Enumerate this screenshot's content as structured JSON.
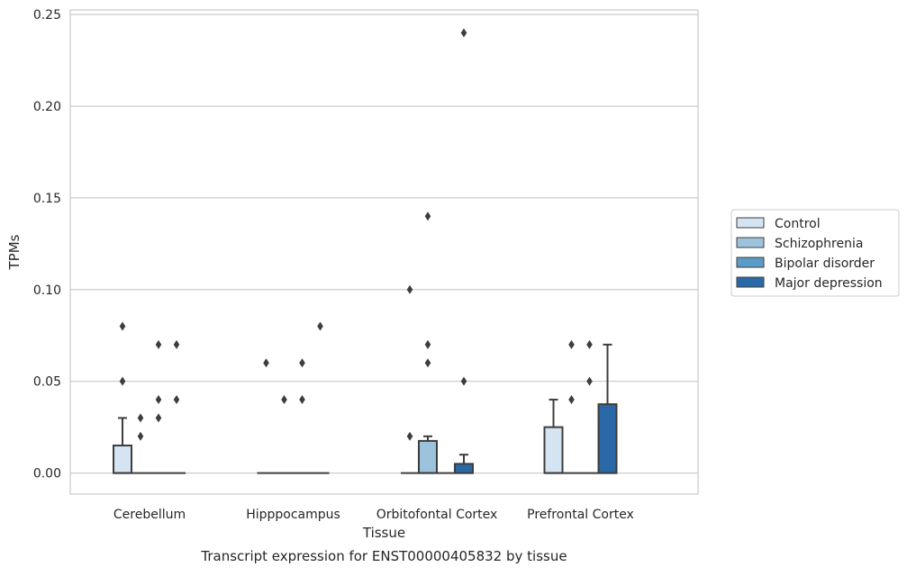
{
  "chart_data": {
    "type": "box",
    "title": "Transcript expression for ENST00000405832 by tissue",
    "xlabel": "Tissue",
    "ylabel": "TPMs",
    "ylim": [
      -0.0115,
      0.2525
    ],
    "yticks": [
      0.0,
      0.05,
      0.1,
      0.15,
      0.2,
      0.25
    ],
    "ytick_labels": [
      "0.00",
      "0.05",
      "0.10",
      "0.15",
      "0.20",
      "0.25"
    ],
    "categories": [
      "Cerebellum",
      "Hipppocampus",
      "Orbitofontal Cortex",
      "Prefrontal Cortex"
    ],
    "grid": "horizontal",
    "legend_position": "right",
    "series": [
      {
        "name": "Control",
        "color": "#d5e4f2",
        "boxes": [
          {
            "q1": 0.0,
            "median": 0.0,
            "q3": 0.015,
            "whisker_low": 0.0,
            "whisker_high": 0.03,
            "outliers": [
              0.05,
              0.08
            ]
          },
          {
            "q1": 0.0,
            "median": 0.0,
            "q3": 0.0,
            "whisker_low": 0.0,
            "whisker_high": 0.0,
            "outliers": [
              0.06
            ]
          },
          {
            "q1": 0.0,
            "median": 0.0,
            "q3": 0.0,
            "whisker_low": 0.0,
            "whisker_high": 0.0,
            "outliers": [
              0.02,
              0.1
            ]
          },
          {
            "q1": 0.0,
            "median": 0.0,
            "q3": 0.025,
            "whisker_low": 0.0,
            "whisker_high": 0.04,
            "outliers": []
          }
        ]
      },
      {
        "name": "Schizophrenia",
        "color": "#9dc3dc",
        "boxes": [
          {
            "q1": 0.0,
            "median": 0.0,
            "q3": 0.0,
            "whisker_low": 0.0,
            "whisker_high": 0.0,
            "outliers": [
              0.02,
              0.03
            ]
          },
          {
            "q1": 0.0,
            "median": 0.0,
            "q3": 0.0,
            "whisker_low": 0.0,
            "whisker_high": 0.0,
            "outliers": [
              0.04
            ]
          },
          {
            "q1": 0.0,
            "median": 0.0,
            "q3": 0.0175,
            "whisker_low": 0.0,
            "whisker_high": 0.02,
            "outliers": [
              0.06,
              0.07,
              0.14
            ]
          },
          {
            "q1": 0.0,
            "median": 0.0,
            "q3": 0.0,
            "whisker_low": 0.0,
            "whisker_high": 0.0,
            "outliers": [
              0.04,
              0.07
            ]
          }
        ]
      },
      {
        "name": "Bipolar disorder",
        "color": "#5a9bc8",
        "boxes": [
          {
            "q1": 0.0,
            "median": 0.0,
            "q3": 0.0,
            "whisker_low": 0.0,
            "whisker_high": 0.0,
            "outliers": [
              0.03,
              0.04,
              0.07
            ]
          },
          {
            "q1": 0.0,
            "median": 0.0,
            "q3": 0.0,
            "whisker_low": 0.0,
            "whisker_high": 0.0,
            "outliers": [
              0.04,
              0.06
            ]
          },
          {
            "q1": 0.0,
            "median": 0.0,
            "q3": 0.0,
            "whisker_low": 0.0,
            "whisker_high": 0.0,
            "outliers": []
          },
          {
            "q1": 0.0,
            "median": 0.0,
            "q3": 0.0,
            "whisker_low": 0.0,
            "whisker_high": 0.0,
            "outliers": [
              0.05,
              0.07
            ]
          }
        ]
      },
      {
        "name": "Major depression",
        "color": "#2a69a8",
        "boxes": [
          {
            "q1": 0.0,
            "median": 0.0,
            "q3": 0.0,
            "whisker_low": 0.0,
            "whisker_high": 0.0,
            "outliers": [
              0.04,
              0.07
            ]
          },
          {
            "q1": 0.0,
            "median": 0.0,
            "q3": 0.0,
            "whisker_low": 0.0,
            "whisker_high": 0.0,
            "outliers": [
              0.08
            ]
          },
          {
            "q1": 0.0,
            "median": 0.0,
            "q3": 0.005,
            "whisker_low": 0.0,
            "whisker_high": 0.01,
            "outliers": [
              0.05,
              0.24
            ]
          },
          {
            "q1": 0.0,
            "median": 0.0,
            "q3": 0.0375,
            "whisker_low": 0.0,
            "whisker_high": 0.07,
            "outliers": []
          }
        ]
      }
    ]
  }
}
